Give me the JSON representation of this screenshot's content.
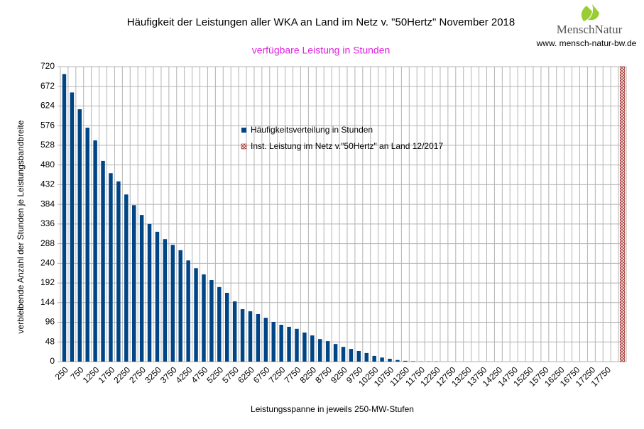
{
  "chart_data": {
    "type": "bar",
    "title": "Häufigkeit der Leistungen aller WKA an Land im Netz v. \"50Hertz\" November 2018",
    "subtitle": "verfügbare Leistung in Stunden",
    "logo": "MenschNatur",
    "url": "www. mensch-natur-bw.de",
    "x_label": "Leistungsspanne in jeweils 250-MW-Stufen",
    "y_label": "verbleibende Anzahl der Stunden je Leistungsbandbreite",
    "categories": [
      250,
      null,
      750,
      null,
      1250,
      null,
      1750,
      null,
      2250,
      null,
      2750,
      null,
      3250,
      null,
      3750,
      null,
      4250,
      null,
      4750,
      null,
      5250,
      null,
      5750,
      null,
      6250,
      null,
      6750,
      null,
      7250,
      null,
      7750,
      null,
      8250,
      null,
      8750,
      null,
      9250,
      null,
      9750,
      null,
      10250,
      null,
      10750,
      null,
      11250,
      null,
      11750,
      null,
      12250,
      null,
      12750,
      null,
      13250,
      null,
      13750,
      null,
      14250,
      null,
      14750,
      null,
      15250,
      null,
      15750,
      null,
      16250,
      null,
      16750,
      null,
      17250,
      null,
      17750,
      null,
      null
    ],
    "series": [
      {
        "name": "Häufigkeitsverteilung in Stunden",
        "color": "#004586",
        "values": [
          702,
          657,
          616,
          571,
          540,
          490,
          460,
          440,
          408,
          382,
          358,
          336,
          317,
          299,
          285,
          272,
          247,
          228,
          213,
          199,
          182,
          168,
          147,
          128,
          123,
          116,
          107,
          97,
          90,
          85,
          80,
          71,
          64,
          55,
          50,
          43,
          36,
          31,
          26,
          21,
          14,
          10,
          7,
          4,
          2,
          1,
          0.5,
          0.5,
          0.5,
          0,
          0,
          0,
          0,
          0,
          0,
          0,
          0,
          0,
          0,
          0,
          0,
          0,
          0,
          0,
          0,
          0,
          0,
          0,
          0,
          0,
          0,
          0,
          null
        ]
      },
      {
        "name": "Inst. Leistung im Netz v.\"50Hertz\" an Land 12/2017",
        "color": "#a0302a",
        "pattern": "crosshatch",
        "values": [
          null,
          null,
          null,
          null,
          null,
          null,
          null,
          null,
          null,
          null,
          null,
          null,
          null,
          null,
          null,
          null,
          null,
          null,
          null,
          null,
          null,
          null,
          null,
          null,
          null,
          null,
          null,
          null,
          null,
          null,
          null,
          null,
          null,
          null,
          null,
          null,
          null,
          null,
          null,
          null,
          null,
          null,
          null,
          null,
          null,
          null,
          null,
          null,
          null,
          null,
          null,
          null,
          null,
          null,
          null,
          null,
          null,
          null,
          null,
          null,
          null,
          null,
          null,
          null,
          null,
          null,
          null,
          null,
          null,
          null,
          null,
          null,
          720
        ]
      }
    ],
    "ylim": [
      0,
      720
    ],
    "yticks": [
      0,
      48,
      96,
      144,
      192,
      240,
      288,
      336,
      384,
      432,
      480,
      528,
      576,
      624,
      672,
      720
    ],
    "grid": true
  }
}
